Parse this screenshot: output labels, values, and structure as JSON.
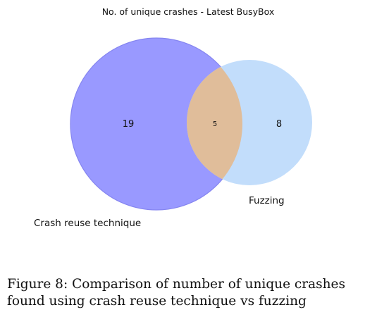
{
  "chart_data": {
    "type": "venn",
    "title": "No. of unique crashes - Latest BusyBox",
    "sets": [
      {
        "name": "Crash reuse technique",
        "only": 19,
        "color": "#9999ff"
      },
      {
        "name": "Fuzzing",
        "only": 8,
        "color": "#c2ddfb"
      }
    ],
    "intersection": {
      "value": 5,
      "color": "#e0bd9a"
    },
    "outline_color": "#8585f0"
  },
  "caption": "Figure 8: Comparison of number of unique crashes found using crash reuse technique vs fuzzing"
}
